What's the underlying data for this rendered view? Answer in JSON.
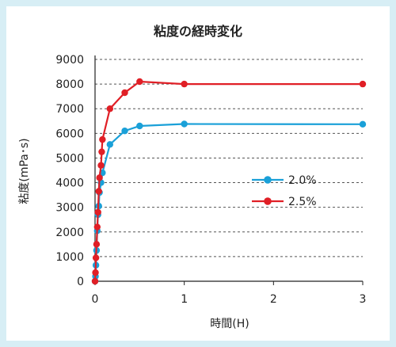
{
  "chart_data": {
    "type": "line",
    "title": "粘度の経時変化",
    "xlabel": "時間(H)",
    "ylabel": "粘度(mPa･s)",
    "xlim": [
      0,
      3
    ],
    "ylim": [
      0,
      9000
    ],
    "x_ticks": [
      "0",
      "1",
      "2",
      "3"
    ],
    "y_ticks": [
      "0",
      "1000",
      "2000",
      "3000",
      "4000",
      "5000",
      "6000",
      "7000",
      "8000",
      "9000"
    ],
    "grid": "horizontal dashed",
    "legend_position": "center-right",
    "series": [
      {
        "name": "2.0%",
        "color": "#1aa0d8",
        "points": [
          [
            0,
            0
          ],
          [
            0.005,
            200
          ],
          [
            0.01,
            650
          ],
          [
            0.017,
            1250
          ],
          [
            0.025,
            2050
          ],
          [
            0.033,
            2700
          ],
          [
            0.042,
            3050
          ],
          [
            0.05,
            3600
          ],
          [
            0.067,
            4000
          ],
          [
            0.083,
            4400
          ],
          [
            0.167,
            5550
          ],
          [
            0.333,
            6100
          ],
          [
            0.5,
            6300
          ],
          [
            1,
            6380
          ],
          [
            3,
            6370
          ]
        ]
      },
      {
        "name": "2.5%",
        "color": "#e01f26",
        "points": [
          [
            0,
            0
          ],
          [
            0.005,
            350
          ],
          [
            0.01,
            950
          ],
          [
            0.017,
            1500
          ],
          [
            0.025,
            2200
          ],
          [
            0.033,
            2800
          ],
          [
            0.042,
            3650
          ],
          [
            0.05,
            4200
          ],
          [
            0.067,
            4700
          ],
          [
            0.075,
            5250
          ],
          [
            0.083,
            5750
          ],
          [
            0.167,
            7000
          ],
          [
            0.333,
            7650
          ],
          [
            0.5,
            8100
          ],
          [
            1,
            8000
          ],
          [
            3,
            8000
          ]
        ]
      }
    ]
  }
}
